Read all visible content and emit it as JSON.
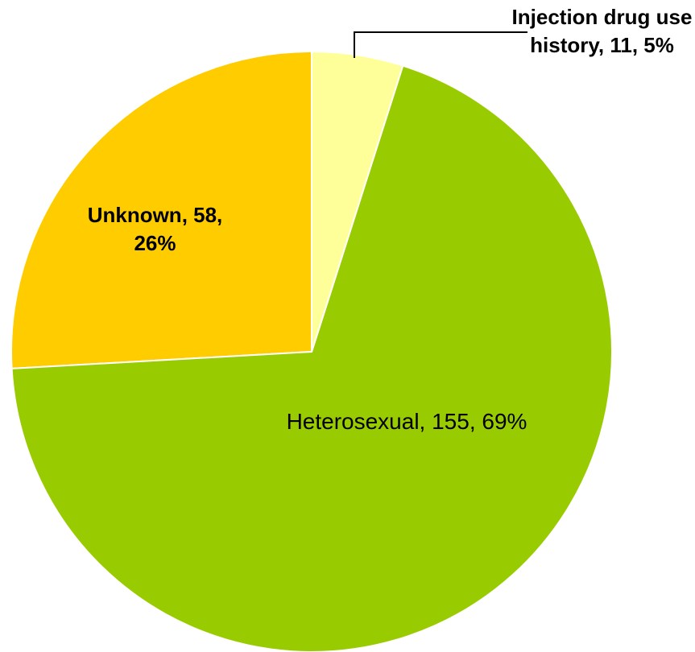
{
  "chart_data": {
    "type": "pie",
    "values": [
      11,
      155,
      58
    ],
    "value_labels": [
      "Injection drug use history, 11, 5%",
      "Heterosexual, 155, 69%",
      "Unknown, 58, 26%"
    ],
    "colors": [
      "#ffff99",
      "#99cc00",
      "#ffcc00"
    ]
  }
}
